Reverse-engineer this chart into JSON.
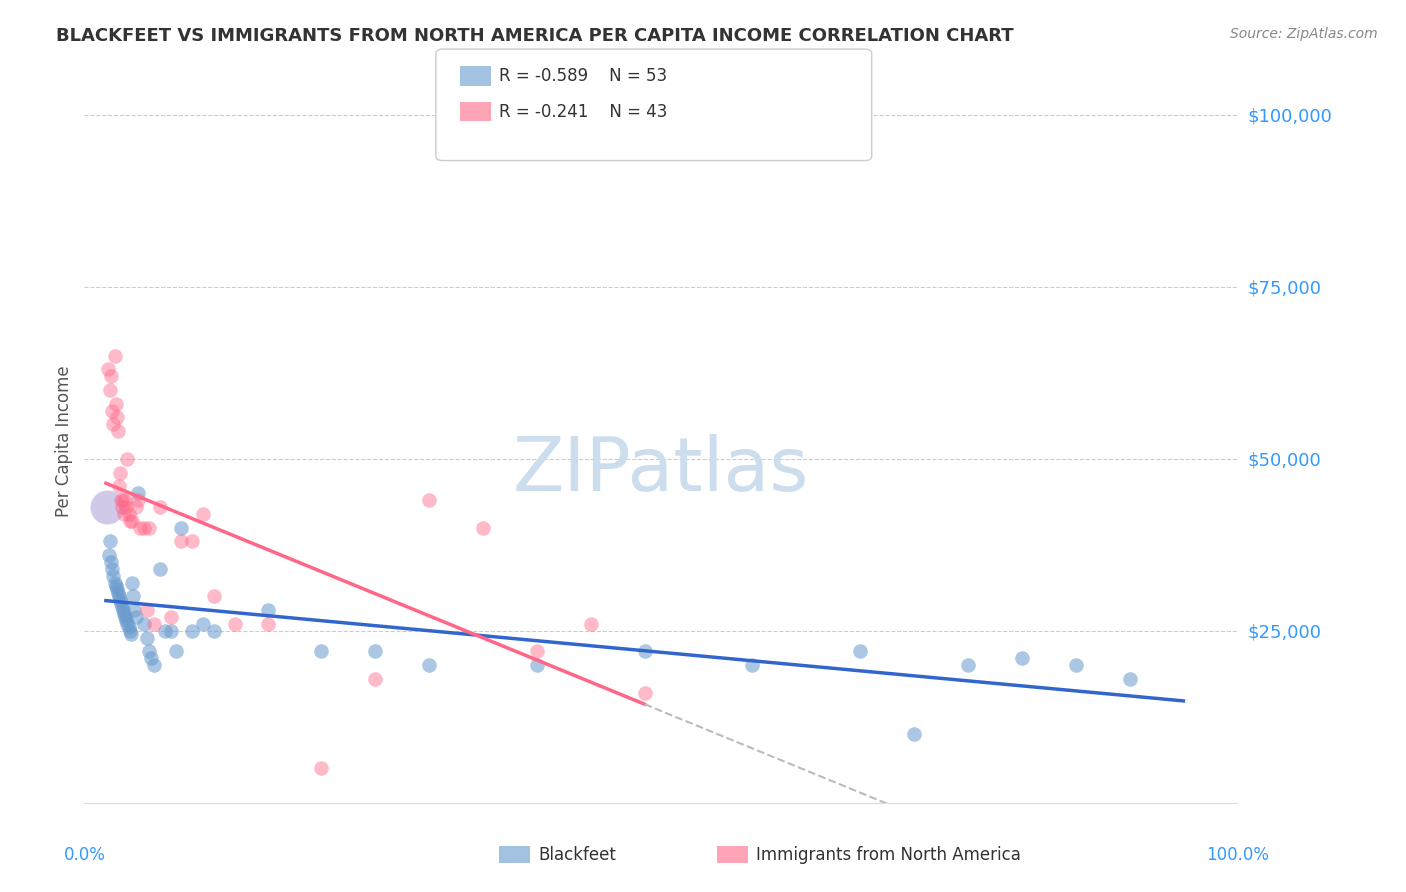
{
  "title": "BLACKFEET VS IMMIGRANTS FROM NORTH AMERICA PER CAPITA INCOME CORRELATION CHART",
  "source": "Source: ZipAtlas.com",
  "ylabel": "Per Capita Income",
  "watermark": "ZIPatlas",
  "ytick_labels": [
    "",
    "$25,000",
    "$50,000",
    "$75,000",
    "$100,000"
  ],
  "legend_blue_r": "R = -0.589",
  "legend_blue_n": "N = 53",
  "legend_pink_r": "R = -0.241",
  "legend_pink_n": "N = 43",
  "blue_color": "#6699CC",
  "pink_color": "#FF6688",
  "blue_line_color": "#3366CC",
  "pink_line_color": "#FF6688",
  "axis_color": "#3399FF",
  "grid_color": "#CCCCCC",
  "title_color": "#333333",
  "watermark_color": "#CCDDEE",
  "blue_scatter_x": [
    0.001,
    0.003,
    0.004,
    0.005,
    0.006,
    0.007,
    0.008,
    0.009,
    0.01,
    0.011,
    0.012,
    0.013,
    0.014,
    0.015,
    0.016,
    0.017,
    0.018,
    0.019,
    0.02,
    0.021,
    0.022,
    0.023,
    0.024,
    0.025,
    0.026,
    0.028,
    0.03,
    0.035,
    0.038,
    0.04,
    0.042,
    0.045,
    0.05,
    0.055,
    0.06,
    0.065,
    0.07,
    0.08,
    0.09,
    0.1,
    0.15,
    0.2,
    0.25,
    0.3,
    0.4,
    0.5,
    0.6,
    0.7,
    0.75,
    0.8,
    0.85,
    0.9,
    0.95
  ],
  "blue_scatter_y": [
    43000,
    36000,
    38000,
    35000,
    34000,
    33000,
    32000,
    31500,
    31000,
    30500,
    30000,
    29500,
    29000,
    28500,
    28000,
    27500,
    27000,
    26500,
    26000,
    25500,
    25000,
    24500,
    32000,
    30000,
    28000,
    27000,
    45000,
    26000,
    24000,
    22000,
    21000,
    20000,
    34000,
    25000,
    25000,
    22000,
    40000,
    25000,
    26000,
    25000,
    28000,
    22000,
    22000,
    20000,
    20000,
    22000,
    20000,
    22000,
    10000,
    20000,
    21000,
    20000,
    18000
  ],
  "pink_scatter_x": [
    0.002,
    0.004,
    0.005,
    0.006,
    0.007,
    0.008,
    0.009,
    0.01,
    0.011,
    0.012,
    0.013,
    0.014,
    0.015,
    0.016,
    0.017,
    0.018,
    0.019,
    0.02,
    0.021,
    0.022,
    0.024,
    0.028,
    0.03,
    0.032,
    0.035,
    0.038,
    0.04,
    0.045,
    0.05,
    0.06,
    0.07,
    0.08,
    0.09,
    0.1,
    0.12,
    0.15,
    0.2,
    0.25,
    0.3,
    0.35,
    0.4,
    0.45,
    0.5
  ],
  "pink_scatter_y": [
    63000,
    60000,
    62000,
    57000,
    55000,
    65000,
    58000,
    56000,
    54000,
    46000,
    48000,
    44000,
    43000,
    44000,
    42000,
    44000,
    43000,
    50000,
    42000,
    41000,
    41000,
    43000,
    44000,
    40000,
    40000,
    28000,
    40000,
    26000,
    43000,
    27000,
    38000,
    38000,
    42000,
    30000,
    26000,
    26000,
    5000,
    18000,
    44000,
    40000,
    22000,
    26000,
    16000
  ],
  "ylim": [
    0,
    105000
  ]
}
